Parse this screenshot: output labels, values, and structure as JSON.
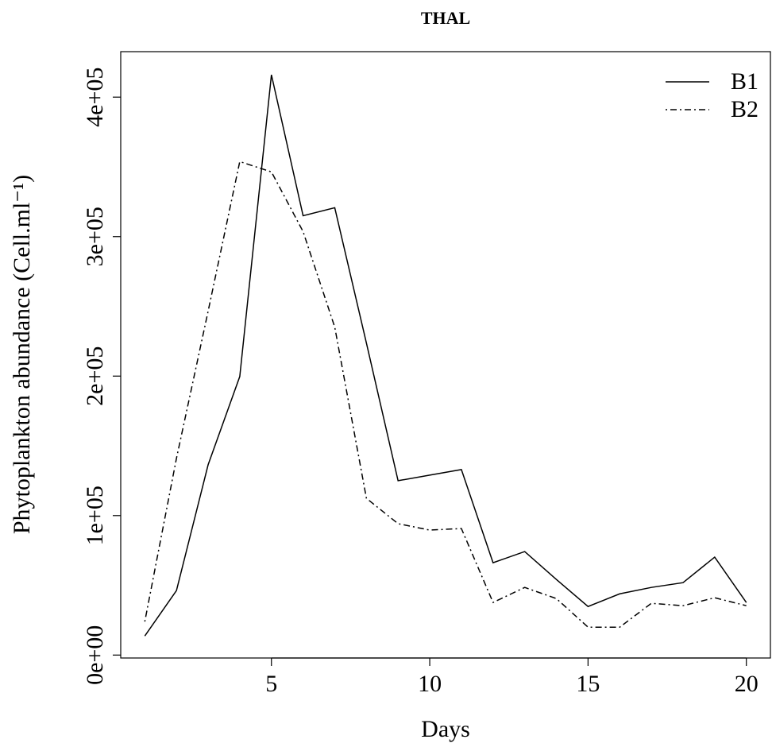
{
  "chart_data": {
    "type": "line",
    "title": "THAL",
    "x_label": "Days",
    "y_label": "Phytoplankton abundance (Cell.ml⁻¹)",
    "x": [
      1,
      2,
      3,
      4,
      5,
      6,
      7,
      8,
      9,
      10,
      11,
      12,
      13,
      14,
      15,
      16,
      17,
      18,
      19,
      20
    ],
    "series": [
      {
        "name": "B1",
        "color": "#000000",
        "linestyle": "solid",
        "values": [
          13700,
          46200,
          136400,
          199700,
          416000,
          315000,
          320700,
          223700,
          125000,
          129000,
          133000,
          66200,
          74200,
          54200,
          34800,
          43900,
          48500,
          51900,
          70200,
          37700
        ]
      },
      {
        "name": "B2",
        "color": "#000000",
        "linestyle": "dashdot",
        "values": [
          24000,
          141000,
          246500,
          353800,
          346400,
          303600,
          235100,
          112400,
          94200,
          89600,
          90700,
          37700,
          48500,
          40500,
          20000,
          20000,
          37100,
          35400,
          41100,
          35400
        ]
      }
    ],
    "xlim": [
      0.24,
      20.76
    ],
    "xticks": [
      5,
      10,
      15,
      20
    ],
    "ylim": [
      -2100,
      432600
    ],
    "yticks": [
      {
        "value": 0,
        "label": "0e+00"
      },
      {
        "value": 100000,
        "label": "1e+05"
      },
      {
        "value": 200000,
        "label": "2e+05"
      },
      {
        "value": 300000,
        "label": "3e+05"
      },
      {
        "value": 400000,
        "label": "4e+05"
      }
    ],
    "legend": "top-right"
  }
}
